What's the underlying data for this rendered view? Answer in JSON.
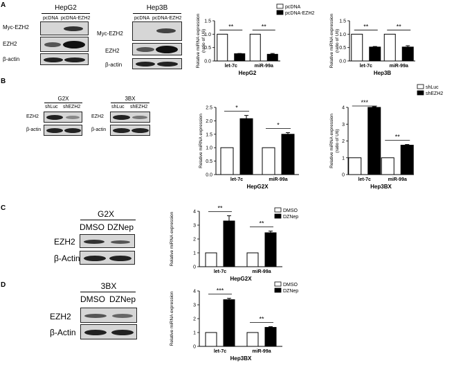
{
  "panels": {
    "A": "A",
    "B": "B",
    "C": "C",
    "D": "D"
  },
  "blots": {
    "A1": {
      "title": "HepG2",
      "lanes": [
        "pcDNA",
        "pcDNA-EZH2"
      ],
      "rows": [
        "Myc-EZH2",
        "EZH2",
        "β-actin"
      ]
    },
    "A2": {
      "title": "Hep3B",
      "lanes": [
        "pcDNA",
        "pcDNA-EZH2"
      ],
      "rows": [
        "Myc-EZH2",
        "EZH2",
        "β-actin"
      ]
    },
    "B1": {
      "title": "G2X",
      "lanes": [
        "shLuc",
        "shEZH2"
      ],
      "rows": [
        "EZH2",
        "β-actin"
      ]
    },
    "B2": {
      "title": "3BX",
      "lanes": [
        "shLuc",
        "shEZH2"
      ],
      "rows": [
        "EZH2",
        "β-actin"
      ]
    },
    "C1": {
      "title": "G2X",
      "lanes": [
        "DMSO",
        "DZNep"
      ],
      "rows": [
        "EZH2",
        "β-Actin"
      ]
    },
    "D1": {
      "title": "3BX",
      "lanes": [
        "DMSO",
        "DZNep"
      ],
      "rows": [
        "EZH2",
        "β-Actin"
      ]
    }
  },
  "chart_data": [
    {
      "id": "A1",
      "type": "bar",
      "title": "HepG2",
      "ylabel": "Relative miRNA expression (ratio of U6)",
      "categories": [
        "let-7c",
        "miR-99a"
      ],
      "ylim": [
        0,
        1.5
      ],
      "yticks": [
        "0.0",
        "0.5",
        "1.0",
        "1.5"
      ],
      "series": [
        {
          "name": "pcDNA",
          "values": [
            1.0,
            1.0
          ],
          "err": [
            0,
            0
          ]
        },
        {
          "name": "pcDNA-EZH2",
          "values": [
            0.27,
            0.25
          ],
          "err": [
            0.01,
            0.03
          ]
        }
      ],
      "sig": [
        "**",
        "**"
      ],
      "legend": true
    },
    {
      "id": "A2",
      "type": "bar",
      "title": "Hep3B",
      "ylabel": "Relative miRNA expression (ratio of U6)",
      "categories": [
        "let-7c",
        "miR-99a"
      ],
      "ylim": [
        0,
        1.5
      ],
      "yticks": [
        "0.0",
        "0.5",
        "1.0",
        "1.5"
      ],
      "series": [
        {
          "name": "pcDNA",
          "values": [
            1.0,
            1.0
          ],
          "err": [
            0,
            0
          ]
        },
        {
          "name": "pcDNA-EZH2",
          "values": [
            0.52,
            0.52
          ],
          "err": [
            0.02,
            0.05
          ]
        }
      ],
      "sig": [
        "**",
        "**"
      ],
      "legend": false
    },
    {
      "id": "B1",
      "type": "bar",
      "title": "HepG2X",
      "ylabel": "Relative miRNA expression",
      "categories": [
        "let-7c",
        "miR-99a"
      ],
      "ylim": [
        0,
        2.5
      ],
      "yticks": [
        "0.0",
        "0.5",
        "1.0",
        "1.5",
        "2.0",
        "2.5"
      ],
      "series": [
        {
          "name": "shLuc",
          "values": [
            1.0,
            1.0
          ],
          "err": [
            0,
            0
          ]
        },
        {
          "name": "shEZH2",
          "values": [
            2.08,
            1.5
          ],
          "err": [
            0.12,
            0.06
          ]
        }
      ],
      "sig": [
        "*",
        "*"
      ],
      "legend": false
    },
    {
      "id": "B2",
      "type": "bar",
      "title": "Hep3BX",
      "ylabel": "Relative miRNA expression (ratio of U6)",
      "categories": [
        "let-7c",
        "miR-99a"
      ],
      "ylim": [
        0,
        4
      ],
      "yticks": [
        "0",
        "1",
        "2",
        "3",
        "4"
      ],
      "series": [
        {
          "name": "shLuc",
          "values": [
            1.0,
            1.0
          ],
          "err": [
            0,
            0
          ]
        },
        {
          "name": "shEZH2",
          "values": [
            4.0,
            1.75
          ],
          "err": [
            0.04,
            0.04
          ]
        }
      ],
      "sig": [
        "***",
        "**"
      ],
      "legend": true
    },
    {
      "id": "C1",
      "type": "bar",
      "title": "HepG2X",
      "ylabel": "Relative miRNA expression",
      "categories": [
        "let-7c",
        "miR-99a"
      ],
      "ylim": [
        0,
        4
      ],
      "yticks": [
        "0",
        "1",
        "2",
        "3",
        "4"
      ],
      "series": [
        {
          "name": "DMSO",
          "values": [
            1.0,
            1.0
          ],
          "err": [
            0,
            0
          ]
        },
        {
          "name": "DZNep",
          "values": [
            3.3,
            2.45
          ],
          "err": [
            0.38,
            0.12
          ]
        }
      ],
      "sig": [
        "**",
        "**"
      ],
      "legend": true
    },
    {
      "id": "D1",
      "type": "bar",
      "title": "Hep3BX",
      "ylabel": "Relative miRNA expression",
      "categories": [
        "let-7c",
        "miR-99a"
      ],
      "ylim": [
        0,
        4
      ],
      "yticks": [
        "0",
        "1",
        "2",
        "3",
        "4"
      ],
      "series": [
        {
          "name": "DMSO",
          "values": [
            1.0,
            1.0
          ],
          "err": [
            0,
            0
          ]
        },
        {
          "name": "DZNep",
          "values": [
            3.37,
            1.37
          ],
          "err": [
            0.1,
            0.05
          ]
        }
      ],
      "sig": [
        "***",
        "**"
      ],
      "legend": true
    }
  ]
}
